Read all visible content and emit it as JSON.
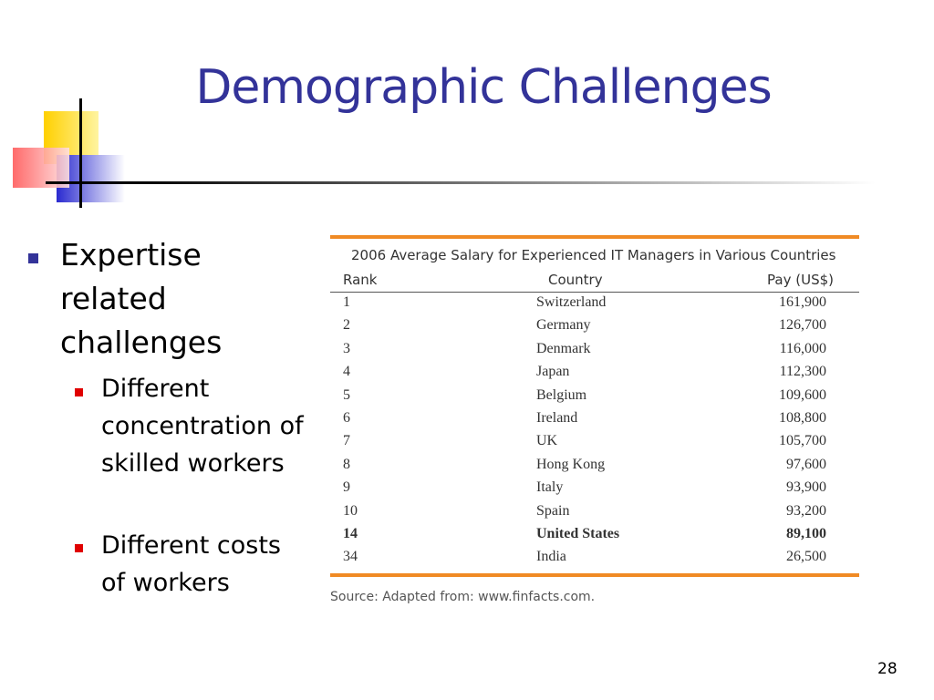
{
  "title": "Demographic Challenges",
  "bullets": [
    {
      "text": "Expertise related challenges",
      "sub": [
        "Different concentration of skilled workers",
        "Different costs of workers"
      ]
    }
  ],
  "table": {
    "title": "2006 Average Salary for Experienced IT Managers in Various Countries",
    "header": [
      "Rank",
      "Country",
      "Pay (US$)"
    ],
    "rows": [
      [
        "1",
        "Switzerland",
        "161,900"
      ],
      [
        "2",
        "Germany",
        "126,700"
      ],
      [
        "3",
        "Denmark",
        "116,000"
      ],
      [
        "4",
        "Japan",
        "112,300"
      ],
      [
        "5",
        "Belgium",
        "109,600"
      ],
      [
        "6",
        "Ireland",
        "108,800"
      ],
      [
        "7",
        "UK",
        "105,700"
      ],
      [
        "8",
        "Hong Kong",
        "97,600"
      ],
      [
        "9",
        "Italy",
        "93,900"
      ],
      [
        "10",
        "Spain",
        "93,200"
      ],
      [
        "14",
        "United States",
        "89,100"
      ],
      [
        "34",
        "India",
        "26,500"
      ]
    ],
    "source": "Source: Adapted from: www.finfacts.com."
  },
  "page_number": "28"
}
